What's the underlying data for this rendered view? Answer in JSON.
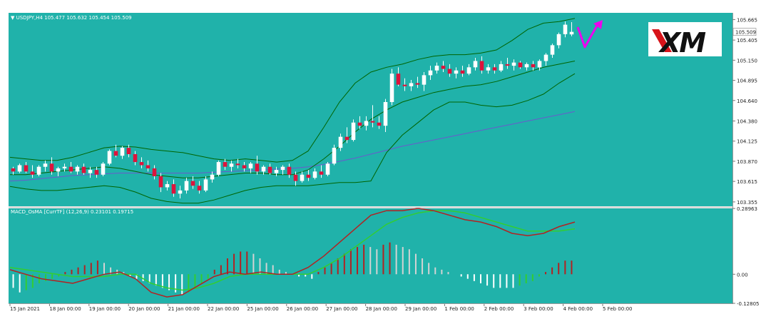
{
  "colors": {
    "background": "#20B2AA",
    "bull_candle": "#FFFFFF",
    "bear_candle": "#DC143C",
    "band": "#006400",
    "ma_slow": "#6A5ACD",
    "hist_positive_rising": "#B22222",
    "hist_positive_falling": "#D3D3D3",
    "hist_negative_falling": "#FFFFFF",
    "hist_negative_rising": "#32CD32",
    "macd_line": "#B22222",
    "signal_line": "#32CD32",
    "arrow": "#EE00EE",
    "logo_bg": "#FFFFFF",
    "logo_text": "#111111",
    "logo_accent": "#D7141A",
    "price_tag_bg": "#FFFFFF"
  },
  "price_panel": {
    "header": "▼ USDJPY,H4  105.477 105.632 105.454 105.509",
    "price_ticks": [
      "105.665",
      "105.405",
      "105.150",
      "104.895",
      "104.640",
      "104.380",
      "104.125",
      "103.870",
      "103.615",
      "103.355"
    ],
    "current_price": "105.509"
  },
  "indicator_panel": {
    "header": "MACD_OsMA [CurrTF] (12,26,9) 0.23101 0.19715",
    "ticks": [
      "0.28963",
      "0.00",
      "-0.12805"
    ]
  },
  "time_axis": {
    "labels": [
      "15 Jan 2021",
      "18 Jan 00:00",
      "19 Jan 00:00",
      "20 Jan 00:00",
      "21 Jan 00:00",
      "22 Jan 00:00",
      "25 Jan 00:00",
      "26 Jan 00:00",
      "27 Jan 00:00",
      "28 Jan 00:00",
      "29 Jan 00:00",
      "1 Feb 00:00",
      "2 Feb 00:00",
      "3 Feb 00:00",
      "4 Feb 00:00",
      "5 Feb 00:00"
    ]
  },
  "logo": {
    "text": "XM",
    "icon": "xm-logo-icon"
  },
  "arrow": {
    "icon": "up-trend-arrow-icon"
  },
  "chart_data": [
    {
      "type": "candlestick",
      "symbol": "USDJPY",
      "timeframe": "H4",
      "ohlc_header": {
        "open": 105.477,
        "high": 105.632,
        "low": 105.454,
        "close": 105.509
      },
      "ylim": [
        103.3,
        105.75
      ],
      "last_price": 105.509,
      "candles": [
        [
          103.78,
          103.8,
          103.7,
          103.74
        ],
        [
          103.74,
          103.84,
          103.72,
          103.82
        ],
        [
          103.82,
          103.86,
          103.72,
          103.74
        ],
        [
          103.74,
          103.82,
          103.66,
          103.7
        ],
        [
          103.7,
          103.82,
          103.68,
          103.8
        ],
        [
          103.8,
          103.88,
          103.74,
          103.84
        ],
        [
          103.84,
          103.92,
          103.7,
          103.74
        ],
        [
          103.74,
          103.8,
          103.68,
          103.78
        ],
        [
          103.78,
          103.84,
          103.74,
          103.8
        ],
        [
          103.8,
          103.86,
          103.72,
          103.74
        ],
        [
          103.74,
          103.82,
          103.7,
          103.8
        ],
        [
          103.8,
          103.84,
          103.7,
          103.72
        ],
        [
          103.72,
          103.8,
          103.66,
          103.76
        ],
        [
          103.76,
          103.8,
          103.66,
          103.7
        ],
        [
          103.7,
          103.86,
          103.68,
          103.84
        ],
        [
          103.84,
          104.02,
          103.82,
          104.0
        ],
        [
          104.0,
          104.08,
          103.92,
          103.94
        ],
        [
          103.94,
          104.06,
          103.9,
          104.04
        ],
        [
          104.04,
          104.08,
          103.92,
          103.96
        ],
        [
          103.96,
          104.0,
          103.82,
          103.86
        ],
        [
          103.86,
          103.92,
          103.78,
          103.82
        ],
        [
          103.82,
          103.88,
          103.74,
          103.78
        ],
        [
          103.78,
          103.82,
          103.64,
          103.68
        ],
        [
          103.68,
          103.72,
          103.48,
          103.54
        ],
        [
          103.54,
          103.62,
          103.5,
          103.58
        ],
        [
          103.58,
          103.64,
          103.42,
          103.46
        ],
        [
          103.46,
          103.56,
          103.4,
          103.5
        ],
        [
          103.5,
          103.66,
          103.46,
          103.62
        ],
        [
          103.62,
          103.68,
          103.52,
          103.56
        ],
        [
          103.56,
          103.62,
          103.46,
          103.5
        ],
        [
          103.5,
          103.68,
          103.48,
          103.64
        ],
        [
          103.64,
          103.74,
          103.6,
          103.7
        ],
        [
          103.7,
          103.88,
          103.68,
          103.86
        ],
        [
          103.86,
          103.9,
          103.76,
          103.8
        ],
        [
          103.8,
          103.88,
          103.74,
          103.84
        ],
        [
          103.84,
          103.9,
          103.78,
          103.82
        ],
        [
          103.82,
          103.86,
          103.74,
          103.78
        ],
        [
          103.78,
          103.86,
          103.72,
          103.84
        ],
        [
          103.84,
          103.94,
          103.7,
          103.74
        ],
        [
          103.74,
          103.82,
          103.7,
          103.8
        ],
        [
          103.8,
          103.84,
          103.7,
          103.72
        ],
        [
          103.72,
          103.8,
          103.68,
          103.76
        ],
        [
          103.76,
          103.82,
          103.7,
          103.8
        ],
        [
          103.8,
          103.84,
          103.66,
          103.7
        ],
        [
          103.7,
          103.74,
          103.56,
          103.62
        ],
        [
          103.62,
          103.74,
          103.6,
          103.7
        ],
        [
          103.7,
          103.76,
          103.62,
          103.66
        ],
        [
          103.66,
          103.78,
          103.64,
          103.74
        ],
        [
          103.74,
          103.82,
          103.66,
          103.7
        ],
        [
          103.7,
          103.86,
          103.68,
          103.84
        ],
        [
          103.84,
          104.08,
          103.82,
          104.04
        ],
        [
          104.04,
          104.22,
          104.0,
          104.18
        ],
        [
          104.18,
          104.3,
          104.1,
          104.14
        ],
        [
          104.14,
          104.4,
          104.12,
          104.36
        ],
        [
          104.36,
          104.44,
          104.28,
          104.32
        ],
        [
          104.32,
          104.44,
          104.26,
          104.38
        ],
        [
          104.38,
          104.58,
          104.3,
          104.36
        ],
        [
          104.36,
          104.44,
          104.28,
          104.32
        ],
        [
          104.32,
          104.66,
          104.24,
          104.62
        ],
        [
          104.62,
          105.04,
          104.58,
          104.98
        ],
        [
          104.98,
          105.06,
          104.82,
          104.84
        ],
        [
          104.84,
          104.92,
          104.76,
          104.82
        ],
        [
          104.82,
          104.9,
          104.76,
          104.86
        ],
        [
          104.86,
          104.94,
          104.8,
          104.84
        ],
        [
          104.84,
          105.0,
          104.76,
          104.96
        ],
        [
          104.96,
          105.08,
          104.9,
          105.02
        ],
        [
          105.02,
          105.12,
          104.98,
          105.08
        ],
        [
          105.08,
          105.14,
          105.0,
          105.04
        ],
        [
          105.04,
          105.1,
          104.94,
          104.98
        ],
        [
          104.98,
          105.06,
          104.92,
          105.02
        ],
        [
          105.02,
          105.08,
          104.94,
          104.98
        ],
        [
          104.98,
          105.1,
          104.96,
          105.06
        ],
        [
          105.06,
          105.18,
          105.02,
          105.14
        ],
        [
          105.14,
          105.2,
          104.98,
          105.02
        ],
        [
          105.02,
          105.1,
          104.98,
          105.06
        ],
        [
          105.06,
          105.1,
          104.98,
          105.02
        ],
        [
          105.02,
          105.14,
          105.0,
          105.1
        ],
        [
          105.1,
          105.18,
          105.04,
          105.08
        ],
        [
          105.08,
          105.16,
          105.02,
          105.12
        ],
        [
          105.12,
          105.14,
          105.04,
          105.06
        ],
        [
          105.06,
          105.12,
          105.02,
          105.1
        ],
        [
          105.1,
          105.14,
          105.02,
          105.06
        ],
        [
          105.06,
          105.16,
          105.02,
          105.14
        ],
        [
          105.14,
          105.24,
          105.08,
          105.22
        ],
        [
          105.22,
          105.36,
          105.18,
          105.34
        ],
        [
          105.34,
          105.5,
          105.3,
          105.48
        ],
        [
          105.48,
          105.64,
          105.44,
          105.6
        ],
        [
          105.477,
          105.632,
          105.454,
          105.509
        ]
      ],
      "bollinger_upper": [
        103.92,
        103.9,
        103.88,
        103.88,
        103.92,
        103.98,
        104.04,
        104.06,
        104.05,
        104.02,
        104.0,
        103.98,
        103.94,
        103.9,
        103.88,
        103.9,
        103.88,
        103.86,
        103.88,
        104.0,
        104.3,
        104.62,
        104.86,
        105.0,
        105.06,
        105.1,
        105.16,
        105.2,
        105.22,
        105.22,
        105.24,
        105.28,
        105.4,
        105.54,
        105.62,
        105.64,
        105.68
      ],
      "bollinger_middle": [
        103.7,
        103.7,
        103.72,
        103.74,
        103.76,
        103.78,
        103.8,
        103.78,
        103.74,
        103.7,
        103.68,
        103.66,
        103.66,
        103.68,
        103.7,
        103.72,
        103.72,
        103.7,
        103.7,
        103.76,
        103.9,
        104.06,
        104.24,
        104.4,
        104.52,
        104.62,
        104.68,
        104.74,
        104.78,
        104.82,
        104.84,
        104.88,
        104.94,
        105.0,
        105.06,
        105.1,
        105.14
      ],
      "bollinger_lower": [
        103.55,
        103.52,
        103.5,
        103.5,
        103.52,
        103.54,
        103.56,
        103.54,
        103.48,
        103.4,
        103.36,
        103.34,
        103.34,
        103.38,
        103.44,
        103.5,
        103.54,
        103.56,
        103.56,
        103.56,
        103.58,
        103.6,
        103.6,
        103.62,
        103.98,
        104.2,
        104.36,
        104.52,
        104.62,
        104.62,
        104.58,
        104.56,
        104.58,
        104.64,
        104.72,
        104.86,
        104.98
      ],
      "ma_slow": [
        103.62,
        103.63,
        103.65,
        103.67,
        103.69,
        103.7,
        103.71,
        103.72,
        103.72,
        103.72,
        103.72,
        103.72,
        103.72,
        103.73,
        103.74,
        103.75,
        103.76,
        103.77,
        103.78,
        103.8,
        103.83,
        103.87,
        103.91,
        103.96,
        104.01,
        104.06,
        104.1,
        104.14,
        104.18,
        104.22,
        104.26,
        104.3,
        104.34,
        104.38,
        104.42,
        104.46,
        104.5
      ]
    },
    {
      "type": "bar",
      "indicator": "MACD_OsMA",
      "params": "(12,26,9)",
      "values_in_header": [
        0.23101,
        0.19715
      ],
      "ylim": [
        -0.128,
        0.29
      ],
      "histogram": [
        -0.06,
        -0.08,
        -0.07,
        -0.06,
        -0.04,
        -0.03,
        -0.02,
        -0.01,
        0.01,
        0.02,
        0.03,
        0.04,
        0.05,
        0.06,
        0.05,
        0.03,
        0.02,
        0.01,
        -0.01,
        -0.02,
        -0.03,
        -0.04,
        -0.05,
        -0.06,
        -0.07,
        -0.08,
        -0.09,
        -0.08,
        -0.06,
        -0.04,
        -0.02,
        0.02,
        0.04,
        0.07,
        0.09,
        0.1,
        0.1,
        0.09,
        0.07,
        0.05,
        0.04,
        0.02,
        0.01,
        0.0,
        -0.01,
        -0.01,
        -0.02,
        0.01,
        0.03,
        0.05,
        0.07,
        0.09,
        0.11,
        0.12,
        0.13,
        0.12,
        0.11,
        0.13,
        0.14,
        0.13,
        0.12,
        0.11,
        0.09,
        0.07,
        0.05,
        0.03,
        0.02,
        0.01,
        0.0,
        -0.01,
        -0.02,
        -0.03,
        -0.04,
        -0.05,
        -0.06,
        -0.06,
        -0.06,
        -0.06,
        -0.05,
        -0.04,
        -0.03,
        -0.01,
        0.01,
        0.03,
        0.05,
        0.06,
        0.06
      ],
      "macd_line": [
        0.02,
        0.0,
        -0.02,
        -0.03,
        -0.04,
        -0.02,
        0.0,
        0.01,
        -0.02,
        -0.08,
        -0.1,
        -0.09,
        -0.05,
        -0.01,
        0.01,
        0.0,
        0.01,
        0.0,
        0.0,
        0.03,
        0.08,
        0.14,
        0.2,
        0.26,
        0.28,
        0.28,
        0.29,
        0.28,
        0.26,
        0.24,
        0.23,
        0.21,
        0.18,
        0.17,
        0.18,
        0.21,
        0.23
      ],
      "signal_line": [
        0.03,
        0.02,
        0.01,
        0.0,
        -0.01,
        -0.01,
        -0.01,
        0.0,
        0.0,
        -0.04,
        -0.06,
        -0.07,
        -0.06,
        -0.04,
        -0.01,
        0.0,
        0.0,
        0.0,
        0.0,
        0.0,
        0.03,
        0.07,
        0.12,
        0.17,
        0.22,
        0.25,
        0.27,
        0.28,
        0.28,
        0.27,
        0.25,
        0.23,
        0.21,
        0.19,
        0.19,
        0.19,
        0.2
      ]
    }
  ]
}
